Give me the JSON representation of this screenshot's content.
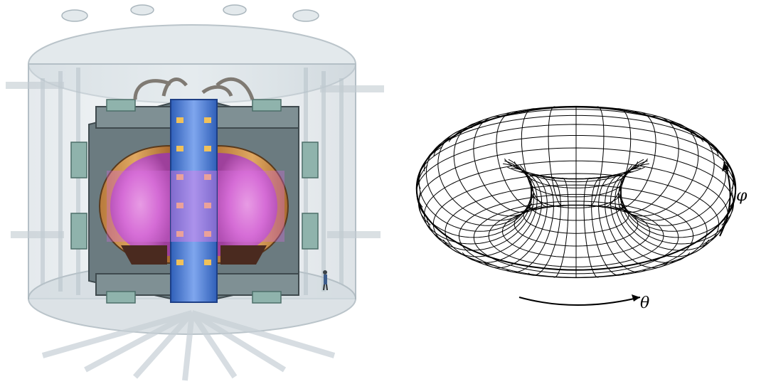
{
  "figure": {
    "left_panel": {
      "kind": "tokamak-cutaway-illustration"
    },
    "right_panel": {
      "kind": "torus-wireframe",
      "labels": {
        "toroidal_angle": "θ",
        "poloidal_angle": "φ"
      }
    }
  },
  "colors": {
    "structure": "#c9d3da",
    "plasma": "#d66be0",
    "coil": "#5c6f73",
    "central_solenoid": "#3f6fd1",
    "line": "#000000"
  }
}
